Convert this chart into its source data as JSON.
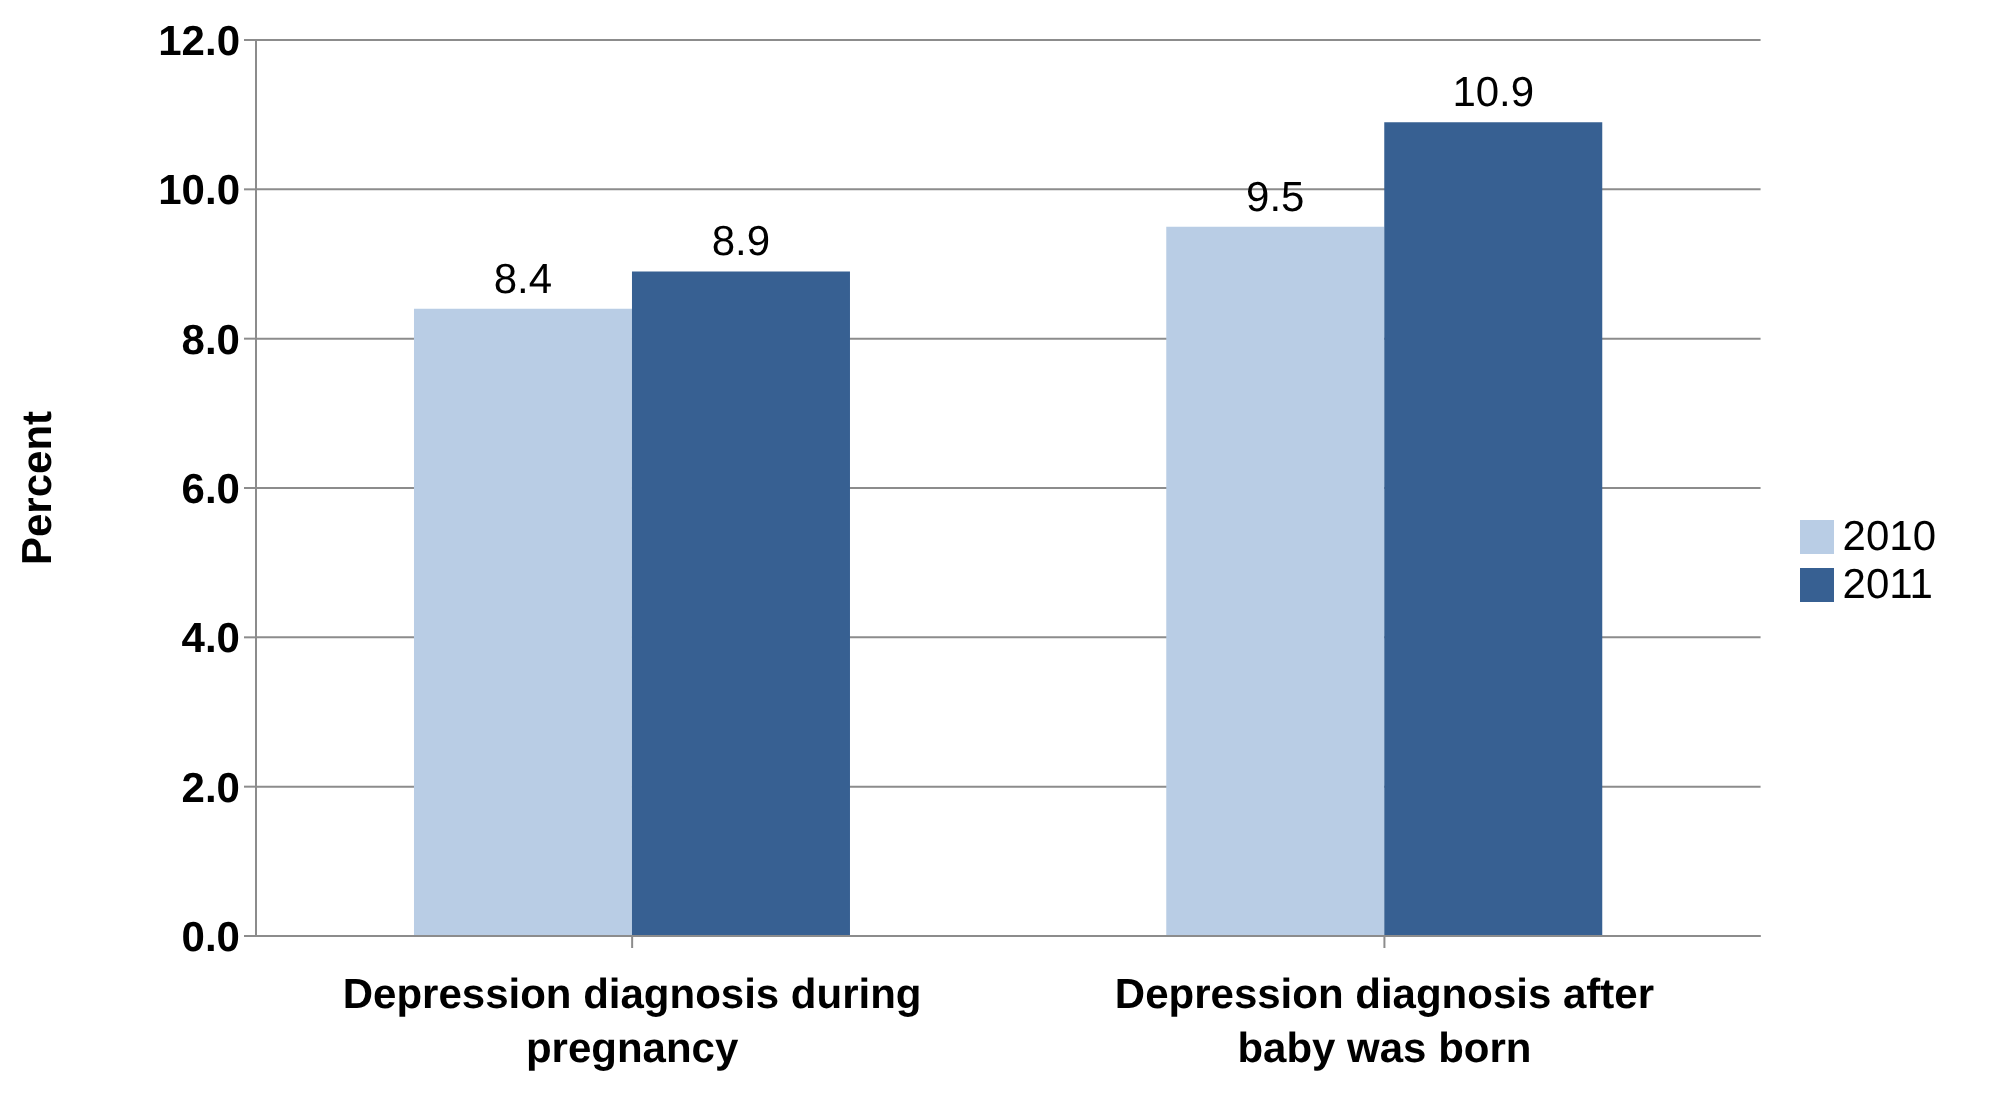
{
  "chart_data": {
    "type": "bar",
    "ylabel": "Percent",
    "categories": [
      "Depression diagnosis during pregnancy",
      "Depression diagnosis after baby was born"
    ],
    "series": [
      {
        "name": "2010",
        "color": "#b9cde5",
        "values": [
          8.4,
          9.5
        ]
      },
      {
        "name": "2011",
        "color": "#376092",
        "values": [
          8.9,
          10.9
        ]
      }
    ],
    "ylim": [
      0,
      12
    ],
    "yticks": [
      {
        "value": 0,
        "label": "0.0"
      },
      {
        "value": 2,
        "label": "2.0"
      },
      {
        "value": 4,
        "label": "4.0"
      },
      {
        "value": 6,
        "label": "6.0"
      },
      {
        "value": 8,
        "label": "8.0"
      },
      {
        "value": 10,
        "label": "10.0"
      },
      {
        "value": 12,
        "label": "12.0"
      }
    ],
    "grid": "y",
    "legend": "right",
    "data_labels": true
  }
}
